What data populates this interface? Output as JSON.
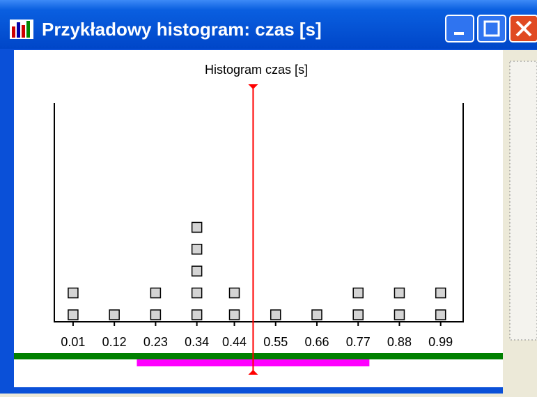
{
  "window_title": "Przykładowy histogram: czas [s]",
  "chart_data": {
    "type": "dot",
    "title": "Histogram czas [s]",
    "x": [
      0.01,
      0.12,
      0.23,
      0.34,
      0.44,
      0.55,
      0.66,
      0.77,
      0.88,
      0.99
    ],
    "values": [
      2,
      1,
      2,
      5,
      2,
      1,
      1,
      2,
      2,
      2
    ],
    "xlim": [
      -0.04,
      1.05
    ],
    "ylim": [
      0,
      10
    ],
    "color": "#d4d4d4",
    "marker": 0.49,
    "marker_color": "#ff0000",
    "range": [
      0.18,
      0.8
    ],
    "range_color": "#ff00ff"
  }
}
